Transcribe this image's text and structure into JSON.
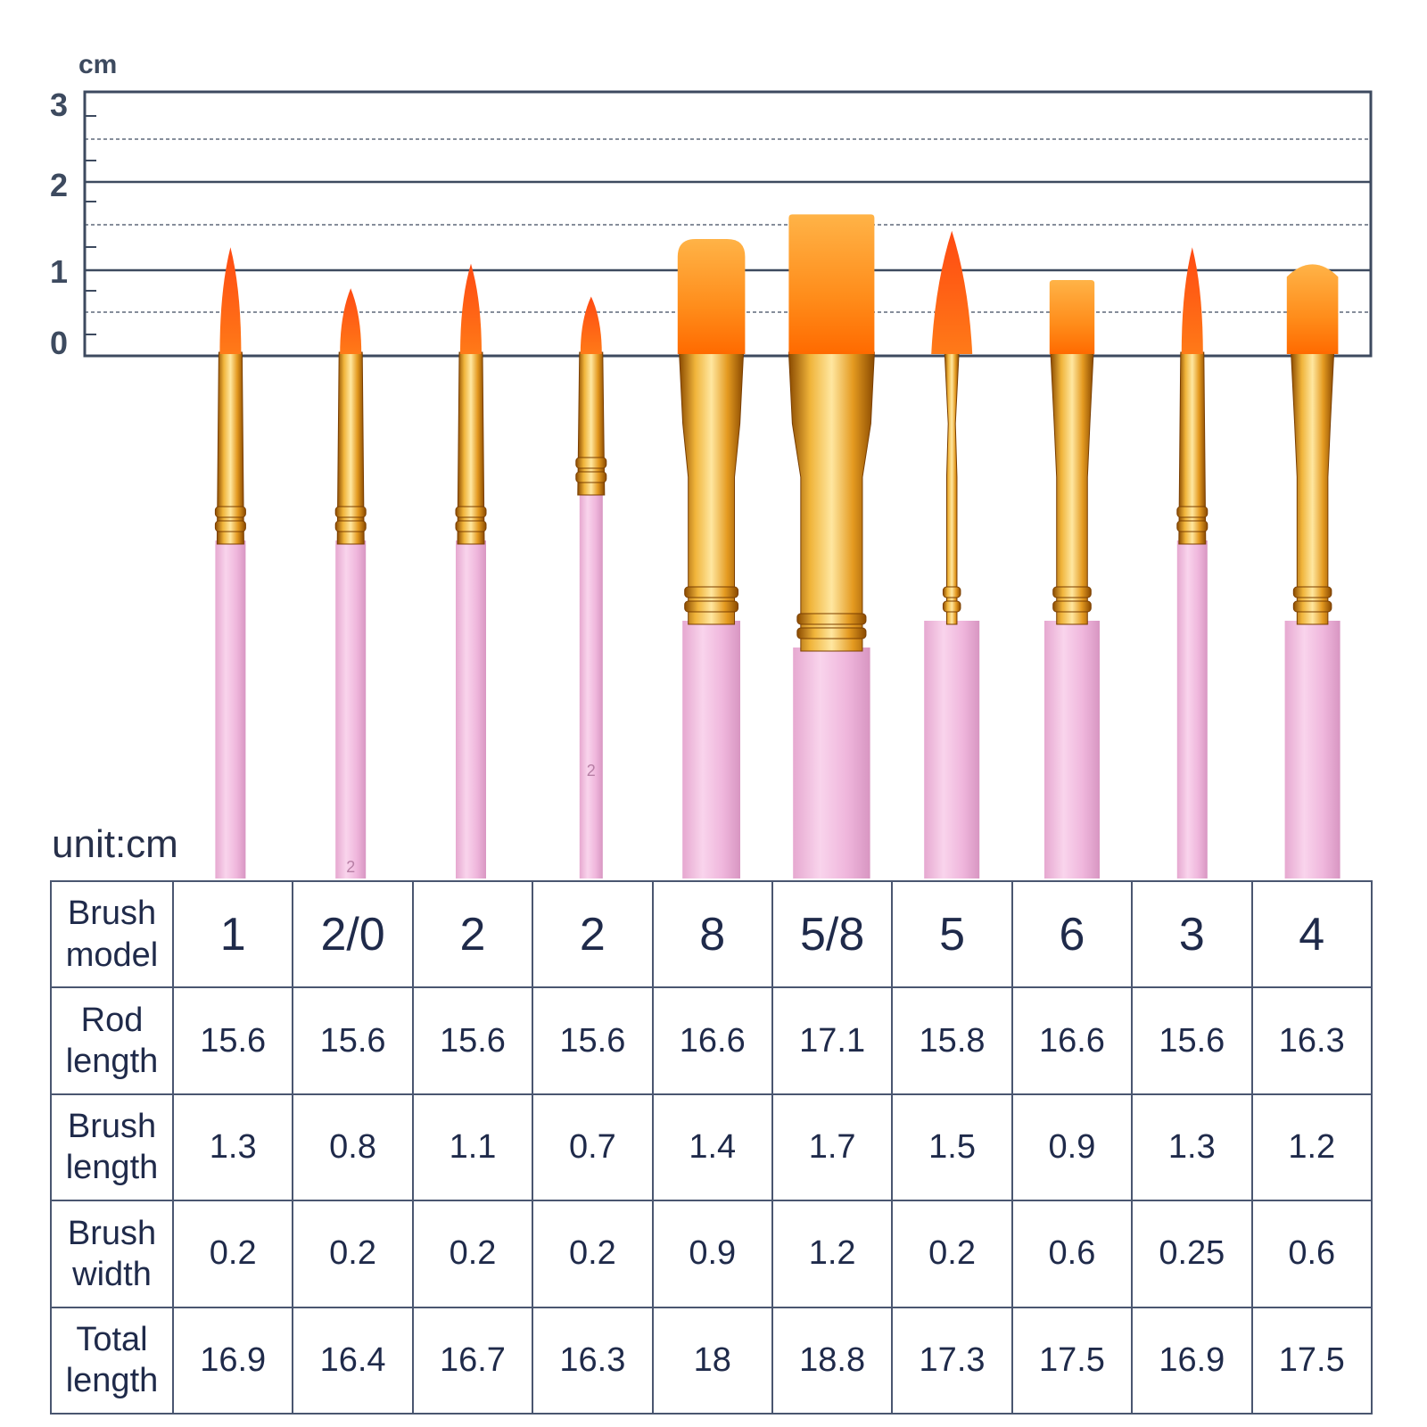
{
  "ruler": {
    "unit": "cm",
    "ticks": [
      "0",
      "1",
      "2",
      "3"
    ]
  },
  "table": {
    "unit_label": "unit:cm",
    "rows": [
      {
        "label": "Brush\nmodel",
        "values": [
          "1",
          "2/0",
          "2",
          "2",
          "8",
          "5/8",
          "5",
          "6",
          "3",
          "4"
        ]
      },
      {
        "label": "Rod\nlength",
        "values": [
          "15.6",
          "15.6",
          "15.6",
          "15.6",
          "16.6",
          "17.1",
          "15.8",
          "16.6",
          "15.6",
          "16.3"
        ]
      },
      {
        "label": "Brush\nlength",
        "values": [
          "1.3",
          "0.8",
          "1.1",
          "0.7",
          "1.4",
          "1.7",
          "1.5",
          "0.9",
          "1.3",
          "1.2"
        ]
      },
      {
        "label": "Brush\nwidth",
        "values": [
          "0.2",
          "0.2",
          "0.2",
          "0.2",
          "0.9",
          "1.2",
          "0.2",
          "0.6",
          "0.25",
          "0.6"
        ]
      },
      {
        "label": "Total\nlength",
        "values": [
          "16.9",
          "16.4",
          "16.7",
          "16.3",
          "18",
          "18.8",
          "17.3",
          "17.5",
          "16.9",
          "17.5"
        ]
      }
    ]
  },
  "brush_shapes": [
    "round",
    "round",
    "round",
    "round",
    "flat",
    "flat",
    "filbert-pointed",
    "flat",
    "round",
    "angled-flat"
  ],
  "handle_markings": [
    "",
    "2",
    "",
    "2",
    "",
    "",
    "",
    "",
    "",
    ""
  ],
  "colors": {
    "bristle_tip": "#ff5a10",
    "bristle_body": "#ffa02a",
    "ferrule": "#e8a020",
    "handle": "#f0b8dc",
    "frame": "#3d4a5f",
    "text": "#1f2a4a"
  }
}
